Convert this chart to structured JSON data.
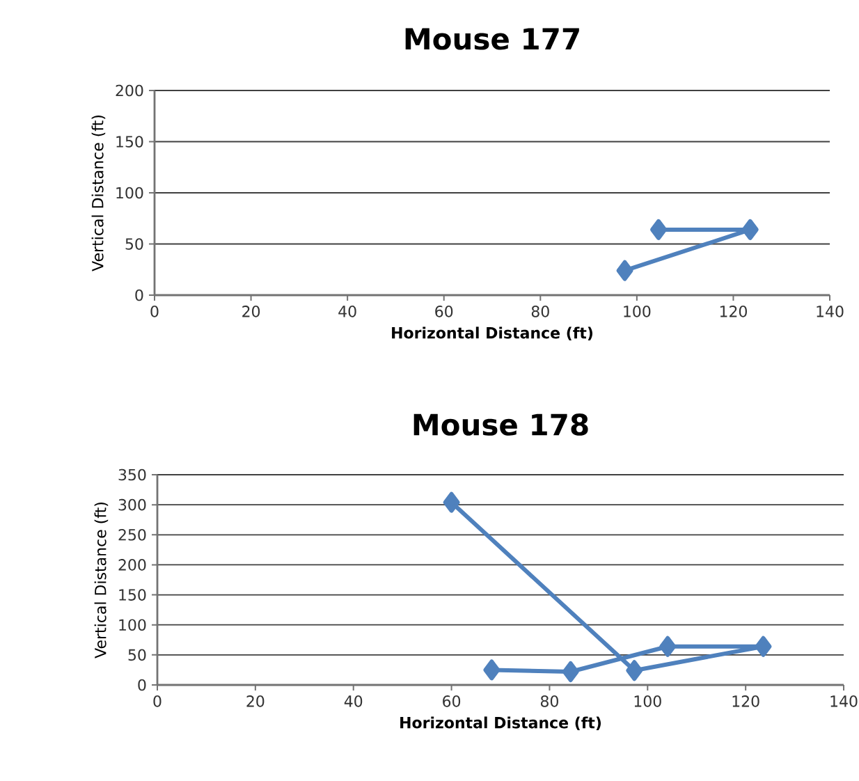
{
  "chart_data": [
    {
      "type": "line",
      "title": "Mouse 177",
      "xlabel": "Horizontal Distance (ft)",
      "ylabel": "Vertical Distance (ft)",
      "xlim": [
        0,
        140
      ],
      "xticks": [
        0,
        20,
        40,
        60,
        80,
        100,
        120,
        140
      ],
      "ylim": [
        0,
        200
      ],
      "yticks": [
        0,
        50,
        100,
        150,
        200
      ],
      "grid": "y",
      "marker": "diamond",
      "series": [
        {
          "color": "#4f81bd",
          "x": [
            97.5,
            123.5,
            104.5
          ],
          "values": [
            24,
            64,
            64
          ]
        }
      ]
    },
    {
      "type": "line",
      "title": "Mouse 178",
      "xlabel": "Horizontal Distance (ft)",
      "ylabel": "Vertical Distance (ft)",
      "xlim": [
        0,
        140
      ],
      "xticks": [
        0,
        20,
        40,
        60,
        80,
        100,
        120,
        140
      ],
      "ylim": [
        0,
        350
      ],
      "yticks": [
        0,
        50,
        100,
        150,
        200,
        250,
        300,
        350
      ],
      "grid": "y",
      "marker": "diamond",
      "series": [
        {
          "color": "#4f81bd",
          "x": [
            60,
            97.3,
            123.6,
            104.1,
            84.3,
            68.2
          ],
          "values": [
            304,
            24,
            64,
            64,
            22,
            25
          ]
        }
      ]
    }
  ]
}
